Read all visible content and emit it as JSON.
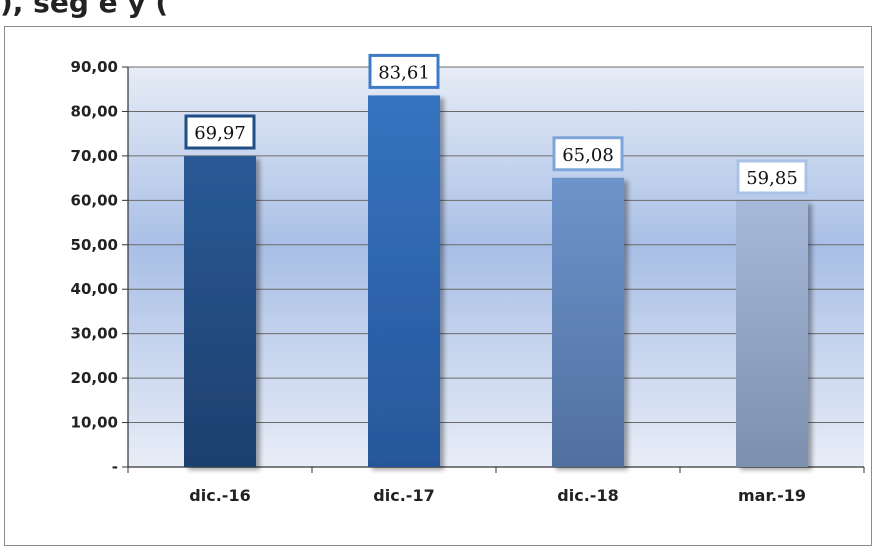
{
  "title_fragment": "), seg    e           y                                        (",
  "chart_data": {
    "type": "bar",
    "categories": [
      "dic.-16",
      "dic.-17",
      "dic.-18",
      "mar.-19"
    ],
    "values": [
      69.97,
      83.61,
      65.08,
      59.85
    ],
    "value_labels": [
      "69,97",
      "83,61",
      "65,08",
      "59,85"
    ],
    "yticks": [
      "-",
      "10,00",
      "20,00",
      "30,00",
      "40,00",
      "50,00",
      "60,00",
      "70,00",
      "80,00",
      "90,00"
    ],
    "ylim": [
      0,
      90
    ],
    "grid": true,
    "legend": "none",
    "bar_colors": [
      "#2a5a96",
      "#3573c0",
      "#6e94cc",
      "#a7b9d8"
    ],
    "bar_colors_dark": [
      "#1d3f6d",
      "#27579a",
      "#50709f",
      "#7c8fae"
    ],
    "label_border_colors": [
      "#1f4e85",
      "#3d7bc8",
      "#7ea6da",
      "#a9c3e6"
    ]
  }
}
